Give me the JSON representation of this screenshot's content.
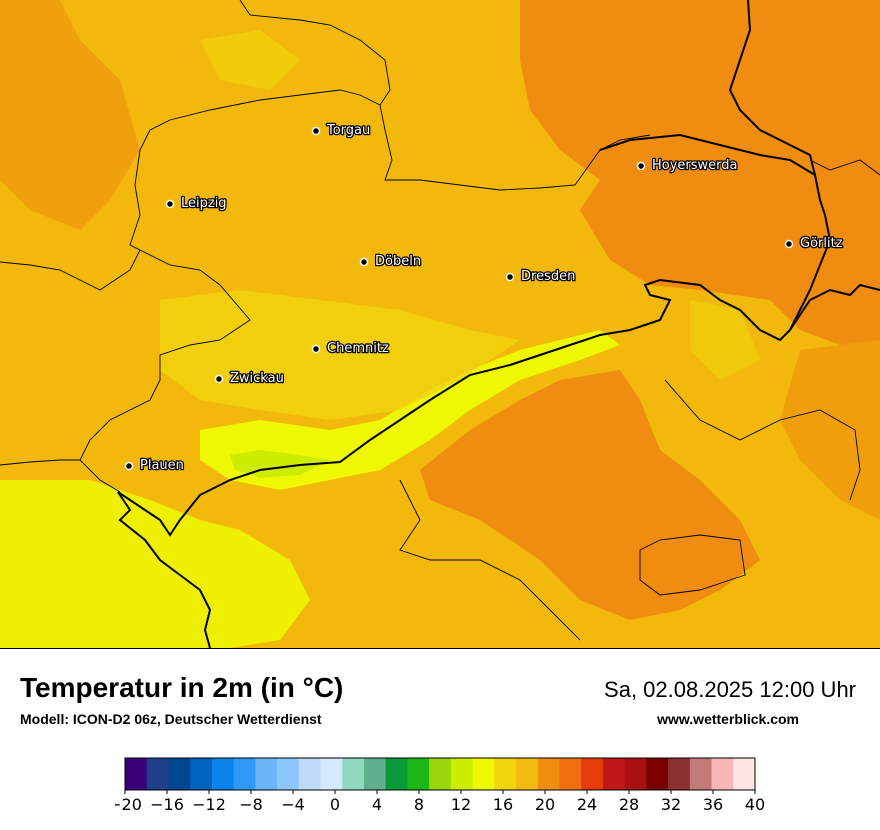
{
  "map": {
    "cities": [
      {
        "name": "Torgau"
      },
      {
        "name": "Leipzig"
      },
      {
        "name": "Hoyerswerda"
      },
      {
        "name": "Görlitz"
      },
      {
        "name": "Döbeln"
      },
      {
        "name": "Dresden"
      },
      {
        "name": "Chemnitz"
      },
      {
        "name": "Zwickau"
      },
      {
        "name": "Plauen"
      }
    ]
  },
  "footer": {
    "title": "Temperatur in 2m (in °C)",
    "subtitle": "Modell: ICON-D2 06z, Deutscher Wetterdienst",
    "datetime": "Sa, 02.08.2025 12:00 Uhr",
    "website": "www.wetterblick.com"
  },
  "legend": {
    "ticks": [
      "−20",
      "−16",
      "−12",
      "−8",
      "−4",
      "0",
      "4",
      "8",
      "12",
      "16",
      "20",
      "24",
      "28",
      "32",
      "36",
      "40"
    ],
    "colors": [
      "#3a0077",
      "#1f3f8a",
      "#00468f",
      "#0063bf",
      "#0a83e8",
      "#2d9bf5",
      "#6cb6f7",
      "#8cc7fa",
      "#bedcfa",
      "#d6e8fb",
      "#8fd9c1",
      "#5fb08f",
      "#0a9a3a",
      "#1db816",
      "#9ad60b",
      "#ccec00",
      "#eef800",
      "#f0d40c",
      "#f2ba0c",
      "#f08c0f",
      "#ef6f10",
      "#e63c0b",
      "#c01818",
      "#a81014",
      "#7a0000",
      "#8a3030",
      "#c57a7a",
      "#f6b6b6",
      "#ffe4e6"
    ]
  }
}
